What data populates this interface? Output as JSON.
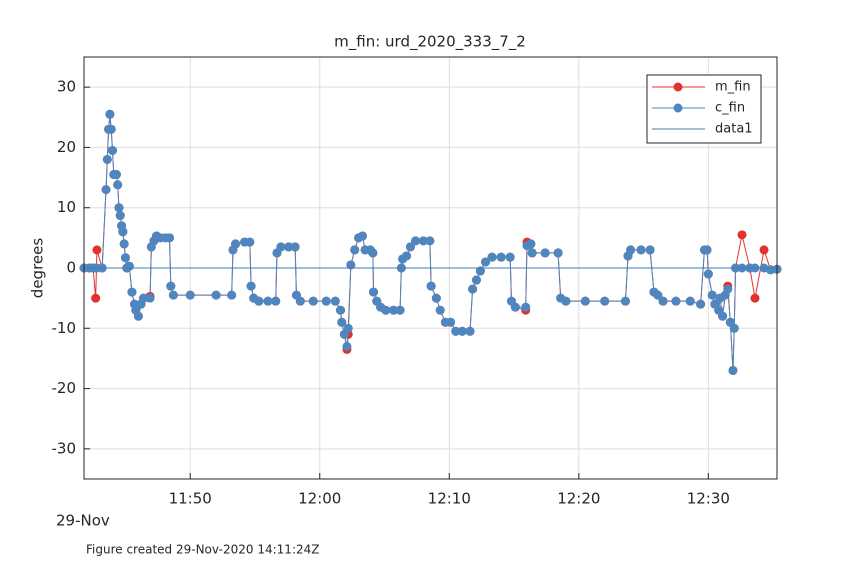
{
  "chart_data": {
    "type": "line",
    "title": "m_fin: urd_2020_333_7_2",
    "y_label": "degrees",
    "date_label": "29-Nov",
    "footnote": "Figure created 29-Nov-2020 14:11:24Z",
    "x": [
      701.8,
      702.2,
      702.5,
      702.7,
      702.8,
      703.2,
      703.5,
      703.6,
      703.7,
      703.8,
      703.9,
      704.0,
      704.1,
      704.3,
      704.4,
      704.5,
      704.6,
      704.7,
      704.8,
      704.9,
      705.0,
      705.1,
      705.3,
      705.5,
      705.7,
      705.8,
      706.0,
      706.2,
      706.4,
      706.9,
      707.0,
      707.2,
      707.4,
      707.7,
      708.1,
      708.4,
      708.5,
      708.7,
      710,
      712,
      713.2,
      713.3,
      713.5,
      714.2,
      714.6,
      714.7,
      714.9,
      715.3,
      716.0,
      716.6,
      716.7,
      717.0,
      717.6,
      718.1,
      718.2,
      718.5,
      719.5,
      720.5,
      721.2,
      721.6,
      721.7,
      721.9,
      722.1,
      722.2,
      722.4,
      722.7,
      723.0,
      723.3,
      723.5,
      723.9,
      724.1,
      724.15,
      724.4,
      724.7,
      725.1,
      725.7,
      726.2,
      726.3,
      726.4,
      726.7,
      727.0,
      727.4,
      728.0,
      728.5,
      728.6,
      729.0,
      729.3,
      729.7,
      730.1,
      730.5,
      731.0,
      731.6,
      731.8,
      732.1,
      732.4,
      732.8,
      733.3,
      734.0,
      734.7,
      734.8,
      735.1,
      735.9,
      736.0,
      736.3,
      736.4,
      737.4,
      738.4,
      738.6,
      739.0,
      740.5,
      742,
      743.6,
      743.8,
      744.0,
      744.8,
      745.5,
      745.8,
      746.1,
      746.5,
      747.5,
      748.6,
      749.4,
      749.7,
      749.9,
      750.0,
      750.3,
      750.5,
      750.8,
      750.9,
      751.1,
      751.3,
      751.5,
      751.7,
      751.9,
      752.0,
      752.1,
      752.6,
      753.2,
      753.6,
      754.3,
      754.8,
      755.3
    ],
    "series": [
      {
        "name": "m_fin",
        "color": "#e2322e",
        "marker": true,
        "values": [
          0,
          0,
          0,
          -5,
          3,
          0,
          13,
          18,
          23,
          25.5,
          23,
          19.5,
          15.5,
          15.5,
          13.8,
          10,
          8.7,
          7,
          6,
          4,
          1.7,
          0,
          0.3,
          -4,
          -6,
          -7,
          -8,
          -6,
          -5,
          -4.7,
          3.5,
          4.5,
          5.3,
          5,
          5,
          5,
          -3,
          -4.5,
          -4.5,
          -4.5,
          -4.5,
          3,
          4,
          4.3,
          4.3,
          -3,
          -5,
          -5.5,
          -5.5,
          -5.5,
          2.5,
          3.5,
          3.5,
          3.5,
          -4.5,
          -5.5,
          -5.5,
          -5.5,
          -5.5,
          -7,
          -9,
          -11,
          -13.5,
          -11,
          0.5,
          3,
          5,
          5.3,
          3,
          3,
          2.5,
          -4,
          -5.5,
          -6.5,
          -7,
          -7,
          -7,
          0,
          1.5,
          2,
          3.5,
          4.5,
          4.5,
          4.5,
          -3,
          -5,
          -7,
          -9,
          -9,
          -10.5,
          -10.5,
          -10.5,
          -3.5,
          -2,
          -0.5,
          1,
          1.8,
          1.8,
          1.8,
          -5.5,
          -6.5,
          -7,
          4.3,
          4,
          2.5,
          2.5,
          2.5,
          -5,
          -5.5,
          -5.5,
          -5.5,
          -5.5,
          2,
          3,
          3,
          3,
          -4,
          -4.5,
          -5.5,
          -5.5,
          -5.5,
          -6,
          3,
          3,
          -1,
          -4.5,
          -6,
          -7,
          -5,
          -8,
          -4.5,
          -3,
          -9,
          -17,
          -10,
          0,
          5.5,
          0,
          -5,
          3,
          -0.3,
          -0.2
        ]
      },
      {
        "name": "c_fin",
        "color": "#4e86c0",
        "marker": true,
        "values": [
          0,
          0,
          0,
          0,
          0,
          0,
          13,
          18,
          23,
          25.5,
          23,
          19.5,
          15.5,
          15.5,
          13.8,
          10,
          8.7,
          7,
          6,
          4,
          1.7,
          0,
          0.3,
          -4,
          -6,
          -7,
          -8,
          -6,
          -5,
          -5,
          3.5,
          4.5,
          5.3,
          5,
          5,
          5,
          -3,
          -4.5,
          -4.5,
          -4.5,
          -4.5,
          3,
          4,
          4.3,
          4.3,
          -3,
          -5,
          -5.5,
          -5.5,
          -5.5,
          2.5,
          3.5,
          3.5,
          3.5,
          -4.5,
          -5.5,
          -5.5,
          -5.5,
          -5.5,
          -7,
          -9,
          -11,
          -13,
          -10,
          0.5,
          3,
          5,
          5.3,
          3,
          3,
          2.5,
          -4,
          -5.5,
          -6.5,
          -7,
          -7,
          -7,
          0,
          1.5,
          2,
          3.5,
          4.5,
          4.5,
          4.5,
          -3,
          -5,
          -7,
          -9,
          -9,
          -10.5,
          -10.5,
          -10.5,
          -3.5,
          -2,
          -0.5,
          1,
          1.8,
          1.8,
          1.8,
          -5.5,
          -6.5,
          -6.5,
          3.7,
          4,
          2.5,
          2.5,
          2.5,
          -5,
          -5.5,
          -5.5,
          -5.5,
          -5.5,
          2,
          3,
          3,
          3,
          -4,
          -4.5,
          -5.5,
          -5.5,
          -5.5,
          -6,
          3,
          3,
          -1,
          -4.5,
          -6,
          -7,
          -5,
          -8,
          -4.5,
          -3.5,
          -9,
          -17,
          -10,
          0,
          0,
          0,
          0,
          0,
          -0.3,
          -0.2
        ]
      },
      {
        "name": "data1",
        "color": "#3d7cb6",
        "marker": false,
        "x": [
          701.8,
          755.3
        ],
        "values": [
          0,
          0
        ]
      }
    ],
    "xlim": [
      701.8,
      755.3
    ],
    "ylim": [
      -35,
      35
    ],
    "xticks": [
      {
        "value": 710,
        "label": "11:50"
      },
      {
        "value": 720,
        "label": "12:00"
      },
      {
        "value": 730,
        "label": "12:10"
      },
      {
        "value": 740,
        "label": "12:20"
      },
      {
        "value": 750,
        "label": "12:30"
      }
    ],
    "yticks": [
      -30,
      -20,
      -10,
      0,
      10,
      20,
      30
    ],
    "grid": true,
    "legend": "northeast"
  }
}
